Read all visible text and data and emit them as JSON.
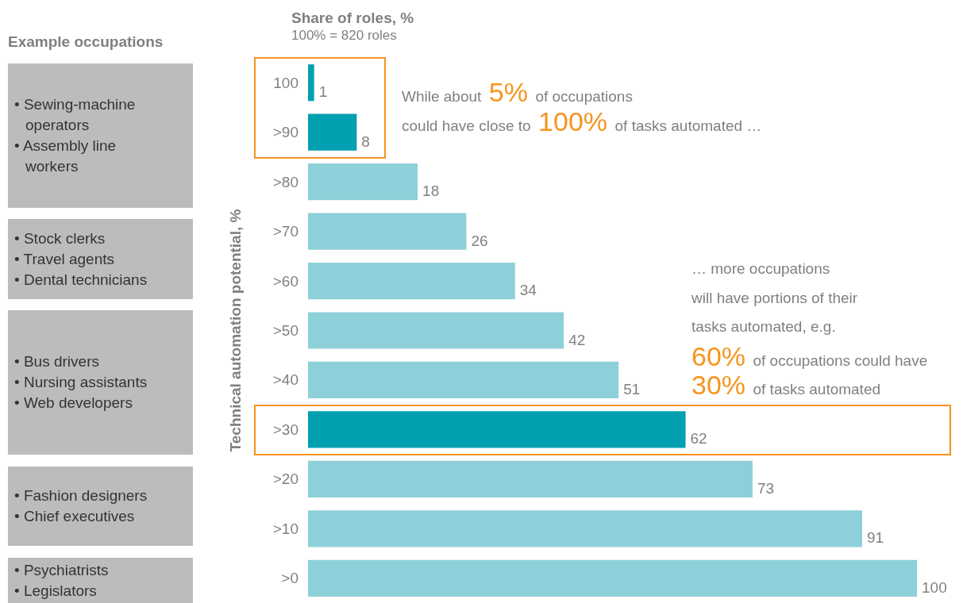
{
  "chart_data": {
    "type": "bar",
    "orientation": "horizontal",
    "title": "Share of roles, %",
    "subtitle": "100% = 820 roles",
    "ylabel": "Technical automation potential, %",
    "categories": [
      "100",
      ">90",
      ">80",
      ">70",
      ">60",
      ">50",
      ">40",
      ">30",
      ">20",
      ">10",
      ">0"
    ],
    "values": [
      1,
      8,
      18,
      26,
      34,
      42,
      51,
      62,
      73,
      91,
      100
    ],
    "colors": [
      "#00a0b0",
      "#00a0b0",
      "#8ed0d9",
      "#8ed0d9",
      "#8ed0d9",
      "#8ed0d9",
      "#8ed0d9",
      "#00a0b0",
      "#8ed0d9",
      "#8ed0d9",
      "#8ed0d9"
    ],
    "data_labels": true,
    "annotations": [
      "Example occupations",
      "• Sewing-machine operators\n• Assembly line workers",
      "• Stock clerks\n• Travel agents\n• Dental technicians",
      "• Bus drivers\n• Nursing assistants\n• Web developers",
      "• Fashion designers\n• Chief executives",
      "• Psychiatrists\n• Legislators",
      "While about 5% of occupations\ncould have close to 100% of tasks automated …",
      "… more occupations\nwill have portions of their\ntasks automated, e.g.\n60% of occupations could have\n30% of tasks automated"
    ]
  }
}
